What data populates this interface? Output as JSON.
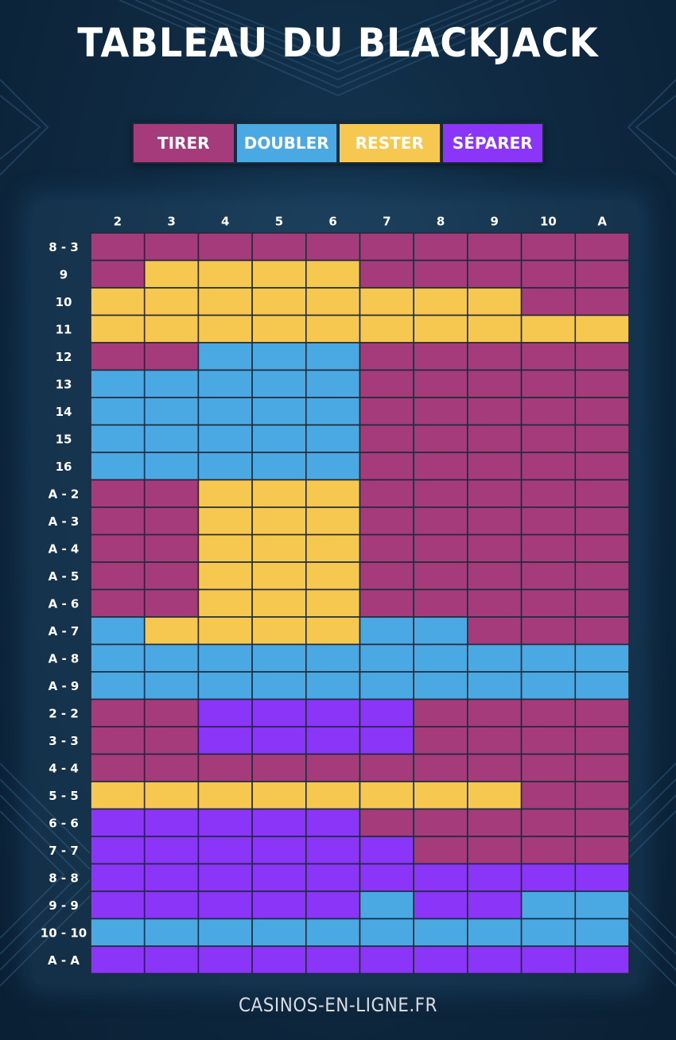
{
  "title": "TABLEAU DU BLACKJACK",
  "footer": "CASINOS-EN-LIGNE.FR",
  "legend": [
    {
      "key": "T",
      "label": "TIRER",
      "color": "#a63b7c"
    },
    {
      "key": "D",
      "label": "DOUBLER",
      "color": "#4aa8e3"
    },
    {
      "key": "R",
      "label": "RESTER",
      "color": "#f7c84f"
    },
    {
      "key": "S",
      "label": "SÉPARER",
      "color": "#8a35f7"
    }
  ],
  "chart_data": {
    "type": "table",
    "columns": [
      "2",
      "3",
      "4",
      "5",
      "6",
      "7",
      "8",
      "9",
      "10",
      "A"
    ],
    "rows": [
      {
        "label": "8 - 3",
        "cells": [
          "T",
          "T",
          "T",
          "T",
          "T",
          "T",
          "T",
          "T",
          "T",
          "T"
        ]
      },
      {
        "label": "9",
        "cells": [
          "T",
          "R",
          "R",
          "R",
          "R",
          "T",
          "T",
          "T",
          "T",
          "T"
        ]
      },
      {
        "label": "10",
        "cells": [
          "R",
          "R",
          "R",
          "R",
          "R",
          "R",
          "R",
          "R",
          "T",
          "T"
        ]
      },
      {
        "label": "11",
        "cells": [
          "R",
          "R",
          "R",
          "R",
          "R",
          "R",
          "R",
          "R",
          "R",
          "R"
        ]
      },
      {
        "label": "12",
        "cells": [
          "T",
          "T",
          "D",
          "D",
          "D",
          "T",
          "T",
          "T",
          "T",
          "T"
        ]
      },
      {
        "label": "13",
        "cells": [
          "D",
          "D",
          "D",
          "D",
          "D",
          "T",
          "T",
          "T",
          "T",
          "T"
        ]
      },
      {
        "label": "14",
        "cells": [
          "D",
          "D",
          "D",
          "D",
          "D",
          "T",
          "T",
          "T",
          "T",
          "T"
        ]
      },
      {
        "label": "15",
        "cells": [
          "D",
          "D",
          "D",
          "D",
          "D",
          "T",
          "T",
          "T",
          "T",
          "T"
        ]
      },
      {
        "label": "16",
        "cells": [
          "D",
          "D",
          "D",
          "D",
          "D",
          "T",
          "T",
          "T",
          "T",
          "T"
        ]
      },
      {
        "label": "A - 2",
        "cells": [
          "T",
          "T",
          "R",
          "R",
          "R",
          "T",
          "T",
          "T",
          "T",
          "T"
        ]
      },
      {
        "label": "A - 3",
        "cells": [
          "T",
          "T",
          "R",
          "R",
          "R",
          "T",
          "T",
          "T",
          "T",
          "T"
        ]
      },
      {
        "label": "A - 4",
        "cells": [
          "T",
          "T",
          "R",
          "R",
          "R",
          "T",
          "T",
          "T",
          "T",
          "T"
        ]
      },
      {
        "label": "A - 5",
        "cells": [
          "T",
          "T",
          "R",
          "R",
          "R",
          "T",
          "T",
          "T",
          "T",
          "T"
        ]
      },
      {
        "label": "A - 6",
        "cells": [
          "T",
          "T",
          "R",
          "R",
          "R",
          "T",
          "T",
          "T",
          "T",
          "T"
        ]
      },
      {
        "label": "A - 7",
        "cells": [
          "D",
          "R",
          "R",
          "R",
          "R",
          "D",
          "D",
          "T",
          "T",
          "T"
        ]
      },
      {
        "label": "A - 8",
        "cells": [
          "D",
          "D",
          "D",
          "D",
          "D",
          "D",
          "D",
          "D",
          "D",
          "D"
        ]
      },
      {
        "label": "A - 9",
        "cells": [
          "D",
          "D",
          "D",
          "D",
          "D",
          "D",
          "D",
          "D",
          "D",
          "D"
        ]
      },
      {
        "label": "2 - 2",
        "cells": [
          "T",
          "T",
          "S",
          "S",
          "S",
          "S",
          "T",
          "T",
          "T",
          "T"
        ]
      },
      {
        "label": "3 - 3",
        "cells": [
          "T",
          "T",
          "S",
          "S",
          "S",
          "S",
          "T",
          "T",
          "T",
          "T"
        ]
      },
      {
        "label": "4 - 4",
        "cells": [
          "T",
          "T",
          "T",
          "T",
          "T",
          "T",
          "T",
          "T",
          "T",
          "T"
        ]
      },
      {
        "label": "5 - 5",
        "cells": [
          "R",
          "R",
          "R",
          "R",
          "R",
          "R",
          "R",
          "R",
          "T",
          "T"
        ]
      },
      {
        "label": "6 - 6",
        "cells": [
          "S",
          "S",
          "S",
          "S",
          "S",
          "T",
          "T",
          "T",
          "T",
          "T"
        ]
      },
      {
        "label": "7 - 7",
        "cells": [
          "S",
          "S",
          "S",
          "S",
          "S",
          "S",
          "T",
          "T",
          "T",
          "T"
        ]
      },
      {
        "label": "8 - 8",
        "cells": [
          "S",
          "S",
          "S",
          "S",
          "S",
          "S",
          "S",
          "S",
          "S",
          "S"
        ]
      },
      {
        "label": "9 - 9",
        "cells": [
          "S",
          "S",
          "S",
          "S",
          "S",
          "D",
          "S",
          "S",
          "D",
          "D"
        ]
      },
      {
        "label": "10 - 10",
        "cells": [
          "D",
          "D",
          "D",
          "D",
          "D",
          "D",
          "D",
          "D",
          "D",
          "D"
        ]
      },
      {
        "label": "A - A",
        "cells": [
          "S",
          "S",
          "S",
          "S",
          "S",
          "S",
          "S",
          "S",
          "S",
          "S"
        ]
      }
    ]
  }
}
